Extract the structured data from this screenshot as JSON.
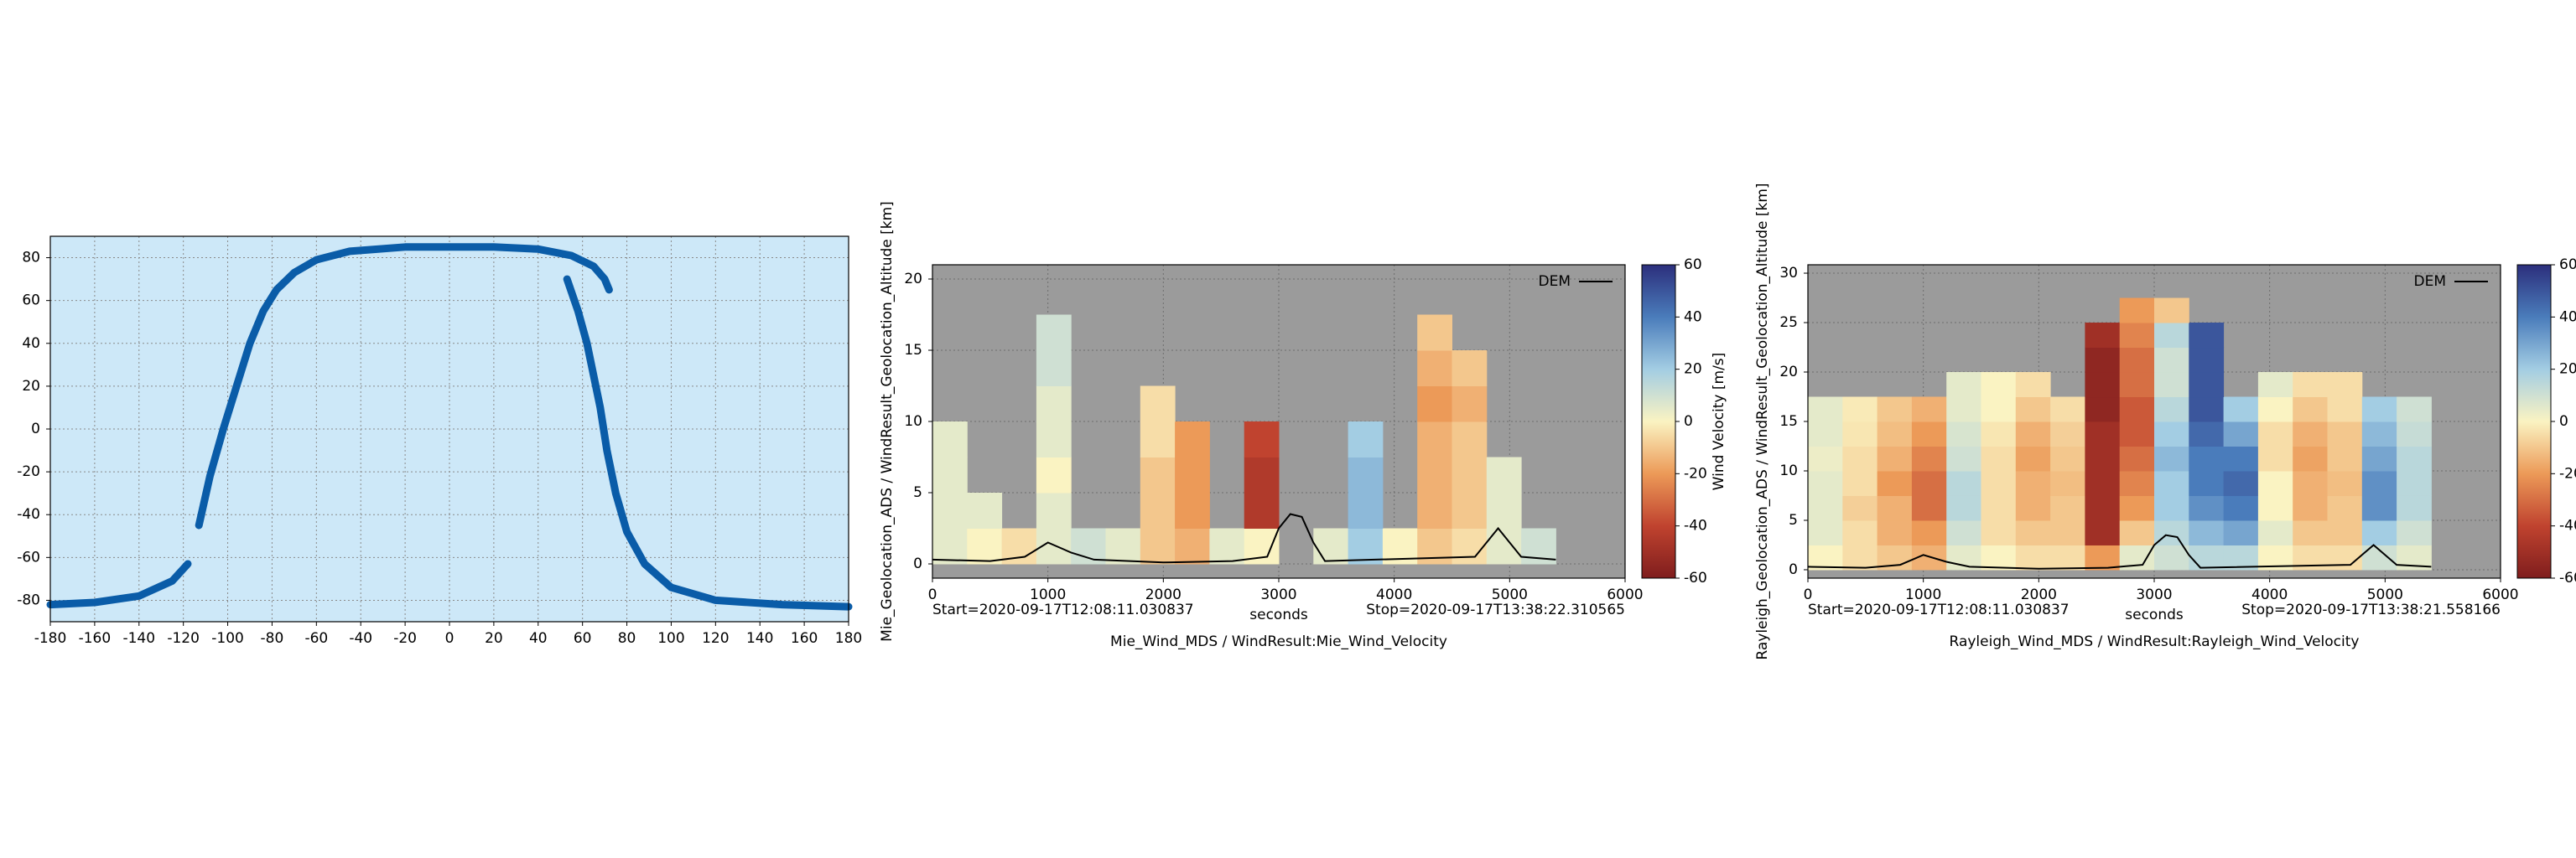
{
  "chart_data": [
    {
      "type": "map",
      "xlim": [
        -180,
        180
      ],
      "ylim": [
        -90,
        90
      ],
      "xticks": [
        -180,
        -160,
        -140,
        -120,
        -100,
        -80,
        -60,
        -40,
        -20,
        0,
        20,
        40,
        60,
        80,
        100,
        120,
        140,
        160,
        180
      ],
      "yticks": [
        -80,
        -60,
        -40,
        -20,
        0,
        20,
        40,
        60,
        80
      ],
      "grid": true,
      "background": "#cde8f8",
      "series": [
        {
          "color": "#0a5ca8",
          "x": [
            -180,
            -160,
            -140,
            -125,
            -118,
            null,
            -113,
            -108,
            -102,
            -96,
            -90,
            -84,
            -78,
            -70,
            -60,
            -45,
            -20,
            0,
            20,
            40,
            55,
            65,
            70,
            72,
            null,
            53,
            58,
            62,
            65,
            68,
            71,
            75,
            80,
            88,
            100,
            120,
            150,
            180
          ],
          "y": [
            -82,
            -81,
            -78,
            -71,
            -63,
            null,
            -45,
            -22,
            0,
            20,
            40,
            55,
            65,
            73,
            79,
            83,
            85,
            85,
            85,
            84,
            81,
            76,
            70,
            65,
            null,
            70,
            55,
            40,
            25,
            10,
            -10,
            -30,
            -48,
            -63,
            -74,
            -80,
            -82,
            -83
          ]
        }
      ]
    },
    {
      "type": "heatmap",
      "title": "Mie_Wind_MDS / WindResult:Mie_Wind_Velocity",
      "xlabel": "seconds",
      "ylabel": "Mie_Geolocation_ADS / WindResult_Geolocation_Altitude [km]",
      "start_label": "Start=2020-09-17T12:08:11.030837",
      "stop_label": "Stop=2020-09-17T13:38:22.310565",
      "colorbar_label": "Wind Velocity [m/s]",
      "xlim": [
        0,
        6000
      ],
      "xticks": [
        0,
        1000,
        2000,
        3000,
        4000,
        5000,
        6000
      ],
      "ylim": [
        -1,
        21
      ],
      "yticks": [
        0,
        5,
        10,
        15,
        20
      ],
      "clim": [
        -60,
        60
      ],
      "cticks": [
        -60,
        -40,
        -20,
        0,
        20,
        40,
        60
      ],
      "colorscale": [
        "#7f1d1d",
        "#c0432f",
        "#ec9a58",
        "#faf3c2",
        "#a3cde3",
        "#4a7cbb",
        "#2c2f7c"
      ],
      "background": "#9b9b9b",
      "grid": true,
      "legend": "upper right",
      "xbins": [
        0,
        300,
        600,
        900,
        1200,
        1500,
        1800,
        2100,
        2400,
        2700,
        3000,
        3300,
        3600,
        3900,
        4200,
        4500,
        4800,
        5100,
        5400
      ],
      "ybins": [
        0,
        2.5,
        5,
        7.5,
        10,
        12.5,
        15,
        17.5,
        20
      ],
      "z": [
        [
          5,
          0,
          -5,
          5,
          10,
          5,
          -10,
          -15,
          5,
          0,
          null,
          5,
          20,
          0,
          -10,
          -5,
          5,
          10
        ],
        [
          5,
          5,
          null,
          5,
          null,
          null,
          -10,
          -20,
          null,
          -45,
          null,
          null,
          25,
          null,
          -15,
          -10,
          5,
          null
        ],
        [
          5,
          null,
          null,
          0,
          null,
          null,
          -10,
          -20,
          null,
          -45,
          null,
          null,
          25,
          null,
          -15,
          -10,
          5,
          null
        ],
        [
          5,
          null,
          null,
          5,
          null,
          null,
          -5,
          -20,
          null,
          -40,
          null,
          null,
          20,
          null,
          -15,
          -10,
          null,
          null
        ],
        [
          null,
          null,
          null,
          5,
          null,
          null,
          -5,
          null,
          null,
          null,
          null,
          null,
          null,
          null,
          -20,
          -15,
          null,
          null
        ],
        [
          null,
          null,
          null,
          10,
          null,
          null,
          null,
          null,
          null,
          null,
          null,
          null,
          null,
          null,
          -15,
          -10,
          null,
          null
        ],
        [
          null,
          null,
          null,
          10,
          null,
          null,
          null,
          null,
          null,
          null,
          null,
          null,
          null,
          null,
          -10,
          null,
          null,
          null
        ],
        [
          null,
          null,
          null,
          null,
          null,
          null,
          null,
          null,
          null,
          null,
          null,
          null,
          null,
          null,
          null,
          null,
          null,
          null
        ]
      ],
      "series": [
        {
          "name": "DEM",
          "color": "#000000",
          "x": [
            0,
            500,
            800,
            1000,
            1200,
            1400,
            2000,
            2600,
            2900,
            3000,
            3100,
            3200,
            3300,
            3400,
            4700,
            4800,
            4900,
            5000,
            5100,
            5400
          ],
          "values": [
            0.3,
            0.2,
            0.5,
            1.5,
            0.8,
            0.3,
            0.1,
            0.2,
            0.5,
            2.5,
            3.5,
            3.3,
            1.5,
            0.2,
            0.5,
            1.5,
            2.5,
            1.5,
            0.5,
            0.3
          ]
        }
      ]
    },
    {
      "type": "heatmap",
      "title": "Rayleigh_Wind_MDS / WindResult:Rayleigh_Wind_Velocity",
      "xlabel": "seconds",
      "ylabel": "Rayleigh_Geolocation_ADS / WindResult_Geolocation_Altitude [km]",
      "start_label": "Start=2020-09-17T12:08:11.030837",
      "stop_label": "Stop=2020-09-17T13:38:21.558166",
      "colorbar_label": "Wind Velocity [m/s]",
      "xlim": [
        0,
        6000
      ],
      "xticks": [
        0,
        1000,
        2000,
        3000,
        4000,
        5000,
        6000
      ],
      "ylim": [
        -0.85,
        30.85
      ],
      "yticks": [
        0,
        5,
        10,
        15,
        20,
        25,
        30
      ],
      "clim": [
        -60,
        60
      ],
      "cticks": [
        -60,
        -40,
        -20,
        0,
        20,
        40,
        60
      ],
      "colorscale": [
        "#7f1d1d",
        "#c0432f",
        "#ec9a58",
        "#faf3c2",
        "#a3cde3",
        "#4a7cbb",
        "#2c2f7c"
      ],
      "background": "#9b9b9b",
      "grid": true,
      "legend": "upper right",
      "xbins": [
        0,
        300,
        600,
        900,
        1200,
        1500,
        1800,
        2100,
        2400,
        2700,
        3000,
        3300,
        3600,
        3900,
        4200,
        4500,
        4800,
        5100,
        5400
      ],
      "ybins": [
        0,
        2.5,
        5,
        7.5,
        10,
        12.5,
        15,
        17.5,
        20,
        22.5,
        25,
        27.5,
        30
      ],
      "z": [
        [
          0,
          -5,
          -10,
          -15,
          5,
          0,
          -5,
          -5,
          -20,
          5,
          10,
          15,
          15,
          0,
          -5,
          -5,
          10,
          5
        ],
        [
          5,
          -5,
          -15,
          -20,
          10,
          -5,
          -10,
          -10,
          -50,
          -10,
          15,
          25,
          30,
          5,
          -10,
          -10,
          20,
          10
        ],
        [
          5,
          -8,
          -15,
          -30,
          15,
          -5,
          -15,
          -10,
          -50,
          -20,
          20,
          35,
          40,
          0,
          -15,
          -10,
          35,
          15
        ],
        [
          5,
          -5,
          -20,
          -30,
          15,
          -5,
          -15,
          -12,
          -50,
          -25,
          20,
          40,
          45,
          0,
          -15,
          -12,
          35,
          15
        ],
        [
          3,
          -5,
          -15,
          -25,
          10,
          -5,
          -18,
          -10,
          -50,
          -30,
          25,
          40,
          40,
          -5,
          -18,
          -10,
          30,
          15
        ],
        [
          5,
          -3,
          -12,
          -20,
          8,
          -3,
          -15,
          -8,
          -50,
          -35,
          20,
          45,
          30,
          -5,
          -15,
          -10,
          25,
          12
        ],
        [
          5,
          -2,
          -10,
          -15,
          5,
          0,
          -10,
          -5,
          -55,
          -35,
          15,
          50,
          20,
          0,
          -10,
          -5,
          20,
          10
        ],
        [
          null,
          null,
          null,
          null,
          5,
          0,
          -5,
          null,
          -55,
          -30,
          10,
          50,
          null,
          5,
          -5,
          -5,
          null,
          null
        ],
        [
          null,
          null,
          null,
          null,
          null,
          null,
          null,
          null,
          -55,
          -30,
          10,
          50,
          null,
          null,
          null,
          null,
          null,
          null
        ],
        [
          null,
          null,
          null,
          null,
          null,
          null,
          null,
          null,
          -50,
          -25,
          15,
          50,
          null,
          null,
          null,
          null,
          null,
          null
        ],
        [
          null,
          null,
          null,
          null,
          null,
          null,
          null,
          null,
          null,
          -20,
          -10,
          null,
          null,
          null,
          null,
          null,
          null,
          null
        ],
        [
          null,
          null,
          null,
          null,
          null,
          null,
          null,
          null,
          null,
          null,
          null,
          null,
          null,
          null,
          null,
          null,
          null,
          null
        ]
      ],
      "series": [
        {
          "name": "DEM",
          "color": "#000000",
          "x": [
            0,
            500,
            800,
            1000,
            1200,
            1400,
            2000,
            2600,
            2900,
            3000,
            3100,
            3200,
            3300,
            3400,
            4700,
            4800,
            4900,
            5000,
            5100,
            5400
          ],
          "values": [
            0.3,
            0.2,
            0.5,
            1.5,
            0.8,
            0.3,
            0.1,
            0.2,
            0.5,
            2.5,
            3.5,
            3.3,
            1.5,
            0.2,
            0.5,
            1.5,
            2.5,
            1.5,
            0.5,
            0.3
          ]
        }
      ]
    }
  ]
}
